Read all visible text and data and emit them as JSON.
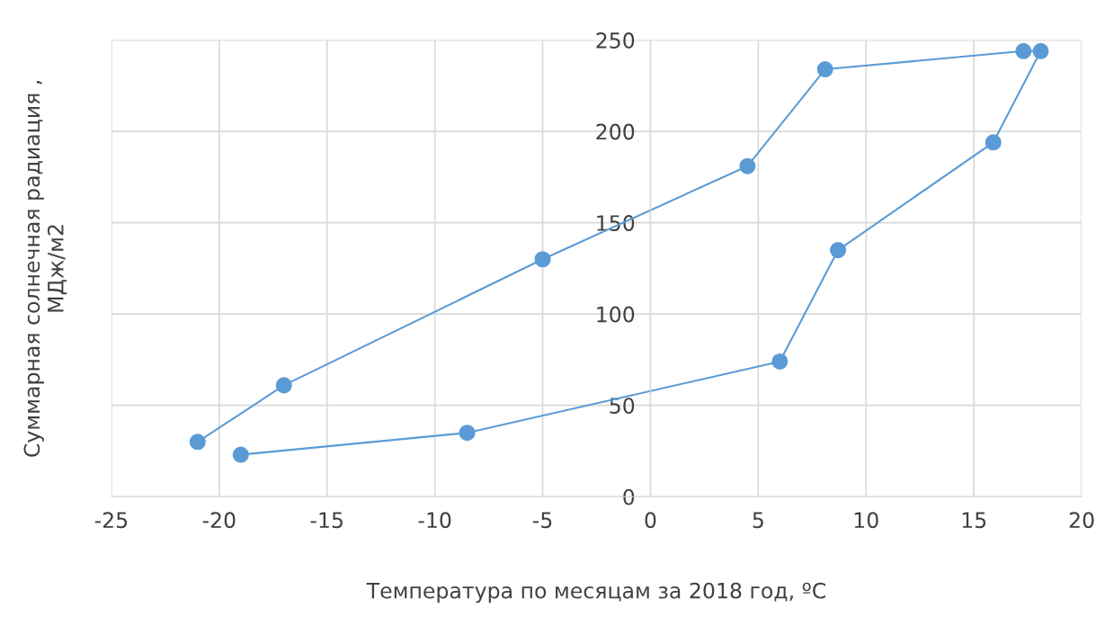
{
  "chart_data": {
    "type": "line",
    "xlabel": "Температура по месяцам за 2018 год, ºC",
    "ylabel": "Суммарная солнечная радиация ,\nМДж/м2",
    "x": [
      -21.0,
      -17.0,
      -5.0,
      4.5,
      8.1,
      17.3,
      18.1,
      15.9,
      8.7,
      6.0,
      -8.5,
      -19.0
    ],
    "series": [
      {
        "color": "#5b9bd5",
        "values": [
          30,
          61,
          130,
          181,
          234,
          244,
          244,
          194,
          135,
          74,
          35,
          23
        ]
      }
    ],
    "marker": "circle",
    "grid": true,
    "legend": false,
    "xlim": [
      -25,
      20
    ],
    "xticks": [
      -25,
      -20,
      -15,
      -10,
      -5,
      0,
      5,
      10,
      15,
      20
    ],
    "ylim": [
      0,
      250
    ],
    "yticks": [
      0,
      50,
      100,
      150,
      200,
      250
    ]
  }
}
